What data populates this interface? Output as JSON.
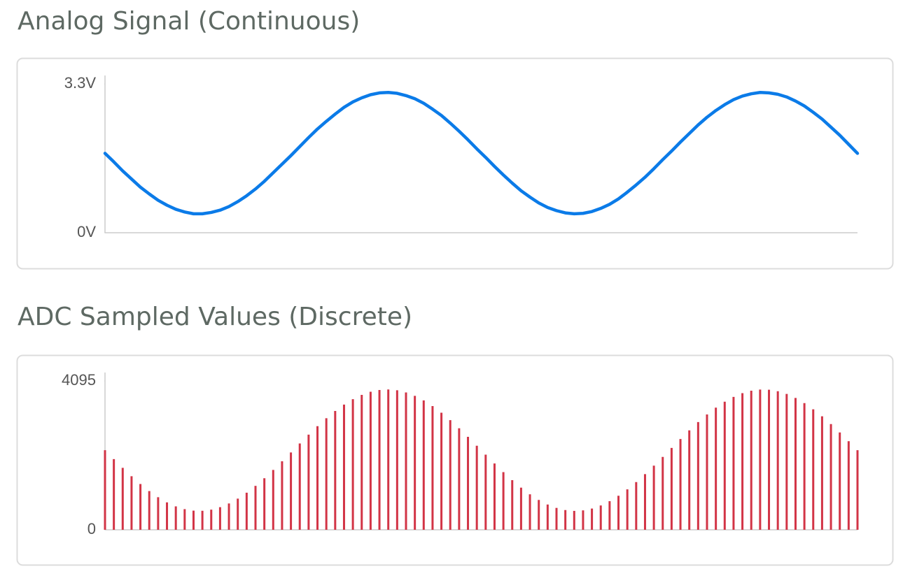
{
  "chart_data": [
    {
      "type": "line",
      "title": "Analog Signal (Continuous)",
      "color": "#0b7be8",
      "values": [
        1.76,
        1.57,
        1.37,
        1.19,
        1.01,
        0.86,
        0.72,
        0.61,
        0.52,
        0.46,
        0.42,
        0.42,
        0.45,
        0.5,
        0.58,
        0.69,
        0.82,
        0.97,
        1.14,
        1.33,
        1.52,
        1.71,
        1.91,
        2.11,
        2.3,
        2.47,
        2.63,
        2.78,
        2.9,
        2.99,
        3.06,
        3.1,
        3.11,
        3.09,
        3.04,
        2.97,
        2.87,
        2.74,
        2.6,
        2.43,
        2.25,
        2.06,
        1.86,
        1.67,
        1.47,
        1.28,
        1.1,
        0.93,
        0.79,
        0.66,
        0.56,
        0.49,
        0.44,
        0.42,
        0.43,
        0.47,
        0.54,
        0.63,
        0.75,
        0.9,
        1.06,
        1.23,
        1.42,
        1.62,
        1.81,
        2.01,
        2.2,
        2.39,
        2.56,
        2.71,
        2.84,
        2.95,
        3.03,
        3.08,
        3.11,
        3.1,
        3.07,
        3.01,
        2.92,
        2.81,
        2.67,
        2.52,
        2.34,
        2.16,
        1.96,
        1.76
      ],
      "ylim": [
        0,
        3.3
      ],
      "yticks": [
        {
          "value": 0,
          "label": "0V"
        },
        {
          "value": 3.3,
          "label": "3.3V"
        }
      ]
    },
    {
      "type": "stem",
      "title": "ADC Sampled Values (Discrete)",
      "color": "#d23446",
      "values": [
        2190,
        1944,
        1703,
        1473,
        1259,
        1065,
        896,
        754,
        644,
        568,
        527,
        523,
        554,
        622,
        724,
        857,
        1020,
        1208,
        1418,
        1645,
        1883,
        2128,
        2375,
        2617,
        2850,
        3069,
        3268,
        3444,
        3593,
        3711,
        3796,
        3846,
        3860,
        3837,
        3778,
        3685,
        3559,
        3404,
        3221,
        3016,
        2793,
        2557,
        2313,
        2067,
        1823,
        1587,
        1364,
        1159,
        976,
        821,
        695,
        602,
        543,
        520,
        534,
        584,
        669,
        787,
        936,
        1112,
        1311,
        1530,
        1763,
        2005,
        2252,
        2497,
        2735,
        2962,
        3172,
        3360,
        3523,
        3656,
        3758,
        3826,
        3857,
        3853,
        3812,
        3736,
        3626,
        3484,
        3315,
        3121,
        2907,
        2677,
        2436,
        2190
      ],
      "ylim": [
        0,
        4095
      ],
      "yticks": [
        0,
        4095
      ]
    }
  ]
}
